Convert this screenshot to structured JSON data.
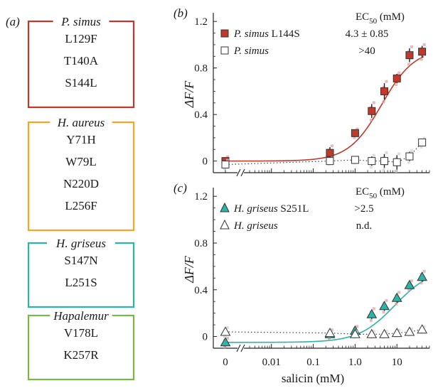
{
  "panel_a": {
    "label": "(a)",
    "boxes": [
      {
        "title": "P. simus",
        "items": [
          "L129F",
          "T140A",
          "S144L"
        ],
        "color": "#c0392b"
      },
      {
        "title": "H. aureus",
        "items": [
          "Y71H",
          "W79L",
          "N220D",
          "L256F"
        ],
        "color": "#f5a623"
      },
      {
        "title": "H. griseus",
        "items": [
          "S147N",
          "L251S"
        ],
        "color": "#2bb5a8"
      },
      {
        "title": "Hapalemur",
        "items": [
          "V178L",
          "K257R"
        ],
        "color": "#7ab648"
      }
    ]
  },
  "chart_data": [
    {
      "panel": "(b)",
      "type": "scatter",
      "ylabel": "ΔF/F",
      "yticks": [
        "0",
        "0.4",
        "0.8",
        "1.2"
      ],
      "ylim": [
        -0.1,
        1.25
      ],
      "ec50_header": "EC50 (mM)",
      "x_zero_point": 0,
      "series": [
        {
          "name": "P. simus L144S",
          "name_italic": "P. simus",
          "name_rest": " L144S",
          "ec50": "4.3 ± 0.85",
          "color": "#c0392b",
          "marker": "filled-square",
          "fit": "sigmoid",
          "zero_value": 0.0,
          "x": [
            0.25,
            1,
            2.5,
            5,
            10,
            20,
            40
          ],
          "y": [
            0.07,
            0.24,
            0.43,
            0.6,
            0.71,
            0.91,
            0.94
          ],
          "err": [
            0.05,
            0.03,
            0.06,
            0.07,
            0.04,
            0.06,
            0.05
          ]
        },
        {
          "name": "P. simus",
          "name_italic": "P. simus",
          "name_rest": "",
          "ec50": ">40",
          "color": "#ffffff",
          "marker": "open-square",
          "fit": "dotted",
          "zero_value": -0.03,
          "x": [
            0.25,
            1,
            2.5,
            5,
            10,
            20,
            40
          ],
          "y": [
            0.0,
            0.01,
            0.0,
            0.0,
            -0.01,
            0.04,
            0.16
          ],
          "err": [
            0.02,
            0.02,
            0.04,
            0.06,
            0.06,
            0.04,
            0.03
          ]
        }
      ]
    },
    {
      "panel": "(c)",
      "type": "scatter",
      "ylabel": "ΔF/F",
      "yticks": [
        "0",
        "0.4",
        "0.8",
        "1.2"
      ],
      "ylim": [
        -0.1,
        1.25
      ],
      "ec50_header": "EC50 (mM)",
      "xlabel": "salicin (mM)",
      "xticks": [
        "0",
        "0.01",
        "0.1",
        "1.0",
        "10"
      ],
      "series": [
        {
          "name": "H. griseus S251L",
          "name_italic": "H. griseus",
          "name_rest": " S251L",
          "ec50": ">2.5",
          "color": "#2bb5a8",
          "marker": "filled-triangle",
          "fit": "sigmoid",
          "zero_value": -0.05,
          "x": [
            0.25,
            1,
            2.5,
            5,
            10,
            20,
            40
          ],
          "y": [
            0.02,
            0.05,
            0.19,
            0.26,
            0.33,
            0.44,
            0.51
          ],
          "err": [
            0.03,
            0.03,
            0.04,
            0.04,
            0.04,
            0.03,
            0.04
          ]
        },
        {
          "name": "H. griseus",
          "name_italic": "H. griseus",
          "name_rest": "",
          "ec50": "n.d.",
          "color": "#ffffff",
          "marker": "open-triangle",
          "fit": "dotted",
          "zero_value": 0.04,
          "x": [
            0.25,
            1,
            2.5,
            5,
            10,
            20,
            40
          ],
          "y": [
            0.03,
            0.02,
            0.02,
            0.02,
            0.03,
            0.04,
            0.06
          ],
          "err": [
            0.02,
            0.02,
            0.02,
            0.02,
            0.02,
            0.02,
            0.02
          ]
        }
      ]
    }
  ]
}
